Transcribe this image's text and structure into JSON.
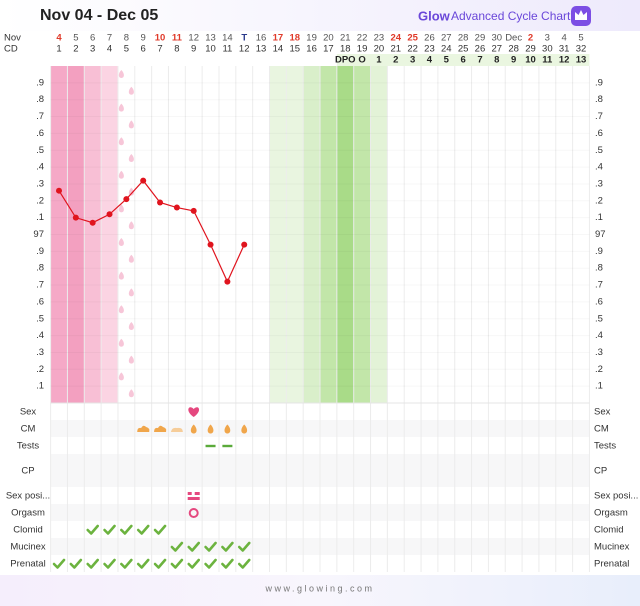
{
  "header": {
    "title": "Nov 04 - Dec 05",
    "brand": "Glow",
    "subtitle": "Advanced Cycle Chart"
  },
  "columns": {
    "month_label": "Nov",
    "cd_label": "CD",
    "dates": [
      4,
      5,
      6,
      7,
      8,
      9,
      10,
      11,
      12,
      13,
      14,
      "T",
      16,
      17,
      18,
      19,
      20,
      21,
      22,
      23,
      24,
      25,
      26,
      27,
      28,
      29,
      30,
      "Dec",
      2,
      3,
      4,
      5
    ],
    "cd": [
      1,
      2,
      3,
      4,
      5,
      6,
      7,
      8,
      9,
      10,
      11,
      12,
      13,
      14,
      15,
      16,
      17,
      18,
      19,
      20,
      21,
      22,
      23,
      24,
      25,
      26,
      27,
      28,
      29,
      30,
      31,
      32
    ],
    "dpo": [
      null,
      null,
      null,
      null,
      null,
      null,
      null,
      null,
      null,
      null,
      null,
      null,
      null,
      null,
      null,
      null,
      null,
      "DPO",
      "O",
      1,
      2,
      3,
      4,
      5,
      6,
      7,
      8,
      9,
      10,
      11,
      12,
      13
    ],
    "red_cd": [
      1,
      7,
      8,
      14,
      15,
      21,
      22,
      29
    ],
    "today_cd": 12
  },
  "shading": {
    "period": [
      {
        "cd": 1,
        "color": "#f5a9c7"
      },
      {
        "cd": 2,
        "color": "#f3a0c0"
      },
      {
        "cd": 3,
        "color": "#f8bfd5"
      },
      {
        "cd": 4,
        "color": "#fbd4e3"
      }
    ],
    "spotting_cd": [
      5
    ],
    "spotting_color": "#f7c6d8",
    "fertile": [
      {
        "cd": 14,
        "color": "#e9f5e0"
      },
      {
        "cd": 15,
        "color": "#e9f5e0"
      },
      {
        "cd": 16,
        "color": "#d9efca"
      },
      {
        "cd": 17,
        "color": "#c2e6a9"
      },
      {
        "cd": 18,
        "color": "#a9db88"
      },
      {
        "cd": 19,
        "color": "#c2e6a9"
      },
      {
        "cd": 20,
        "color": "#e3f3d7"
      }
    ],
    "dpo_color": "#eaf6e0"
  },
  "chart_data": {
    "type": "line",
    "x": [
      1,
      2,
      3,
      4,
      5,
      6,
      7,
      8,
      9,
      10,
      11,
      12
    ],
    "values": [
      97.26,
      97.1,
      97.07,
      97.12,
      97.21,
      97.32,
      97.19,
      97.16,
      97.14,
      96.94,
      96.72,
      96.94
    ],
    "color": "#e0141e",
    "xlim": [
      1,
      32
    ],
    "ylim": [
      96,
      98
    ],
    "yticks": [
      {
        "value": 97.9,
        "label": ".9"
      },
      {
        "value": 97.8,
        "label": ".8"
      },
      {
        "value": 97.7,
        "label": ".7"
      },
      {
        "value": 97.6,
        "label": ".6"
      },
      {
        "value": 97.5,
        "label": ".5"
      },
      {
        "value": 97.4,
        "label": ".4"
      },
      {
        "value": 97.3,
        "label": ".3"
      },
      {
        "value": 97.2,
        "label": ".2"
      },
      {
        "value": 97.1,
        "label": ".1"
      },
      97,
      {
        "value": 96.9,
        "label": ".9"
      },
      {
        "value": 96.8,
        "label": ".8"
      },
      {
        "value": 96.7,
        "label": ".7"
      },
      {
        "value": 96.6,
        "label": ".6"
      },
      {
        "value": 96.5,
        "label": ".5"
      },
      {
        "value": 96.4,
        "label": ".4"
      },
      {
        "value": 96.3,
        "label": ".3"
      },
      {
        "value": 96.2,
        "label": ".2"
      },
      {
        "value": 96.1,
        "label": ".1"
      }
    ]
  },
  "rows": [
    {
      "label": "Sex",
      "icon": "heart",
      "cd": [
        9
      ]
    },
    {
      "label": "CM",
      "icon": "cm",
      "cd": [
        6,
        7,
        8,
        9,
        10,
        11,
        12
      ],
      "kinds": [
        "creamy",
        "creamy",
        "sticky",
        "watery",
        "watery",
        "watery",
        "watery"
      ]
    },
    {
      "label": "Tests",
      "icon": "dash",
      "cd": [
        10,
        11
      ]
    },
    {
      "label": "CP",
      "icon": "none",
      "cd": []
    },
    {
      "label": "Sex posi...",
      "icon": "position",
      "cd": [
        9
      ]
    },
    {
      "label": "Orgasm",
      "icon": "ring",
      "cd": [
        9
      ]
    },
    {
      "label": "Clomid",
      "icon": "check",
      "cd": [
        3,
        4,
        5,
        6,
        7
      ]
    },
    {
      "label": "Mucinex",
      "icon": "check",
      "cd": [
        8,
        9,
        10,
        11,
        12
      ]
    },
    {
      "label": "Prenatal",
      "icon": "check",
      "cd": [
        1,
        2,
        3,
        4,
        5,
        6,
        7,
        8,
        9,
        10,
        11,
        12
      ]
    }
  ],
  "footer": "www.glowing.com"
}
